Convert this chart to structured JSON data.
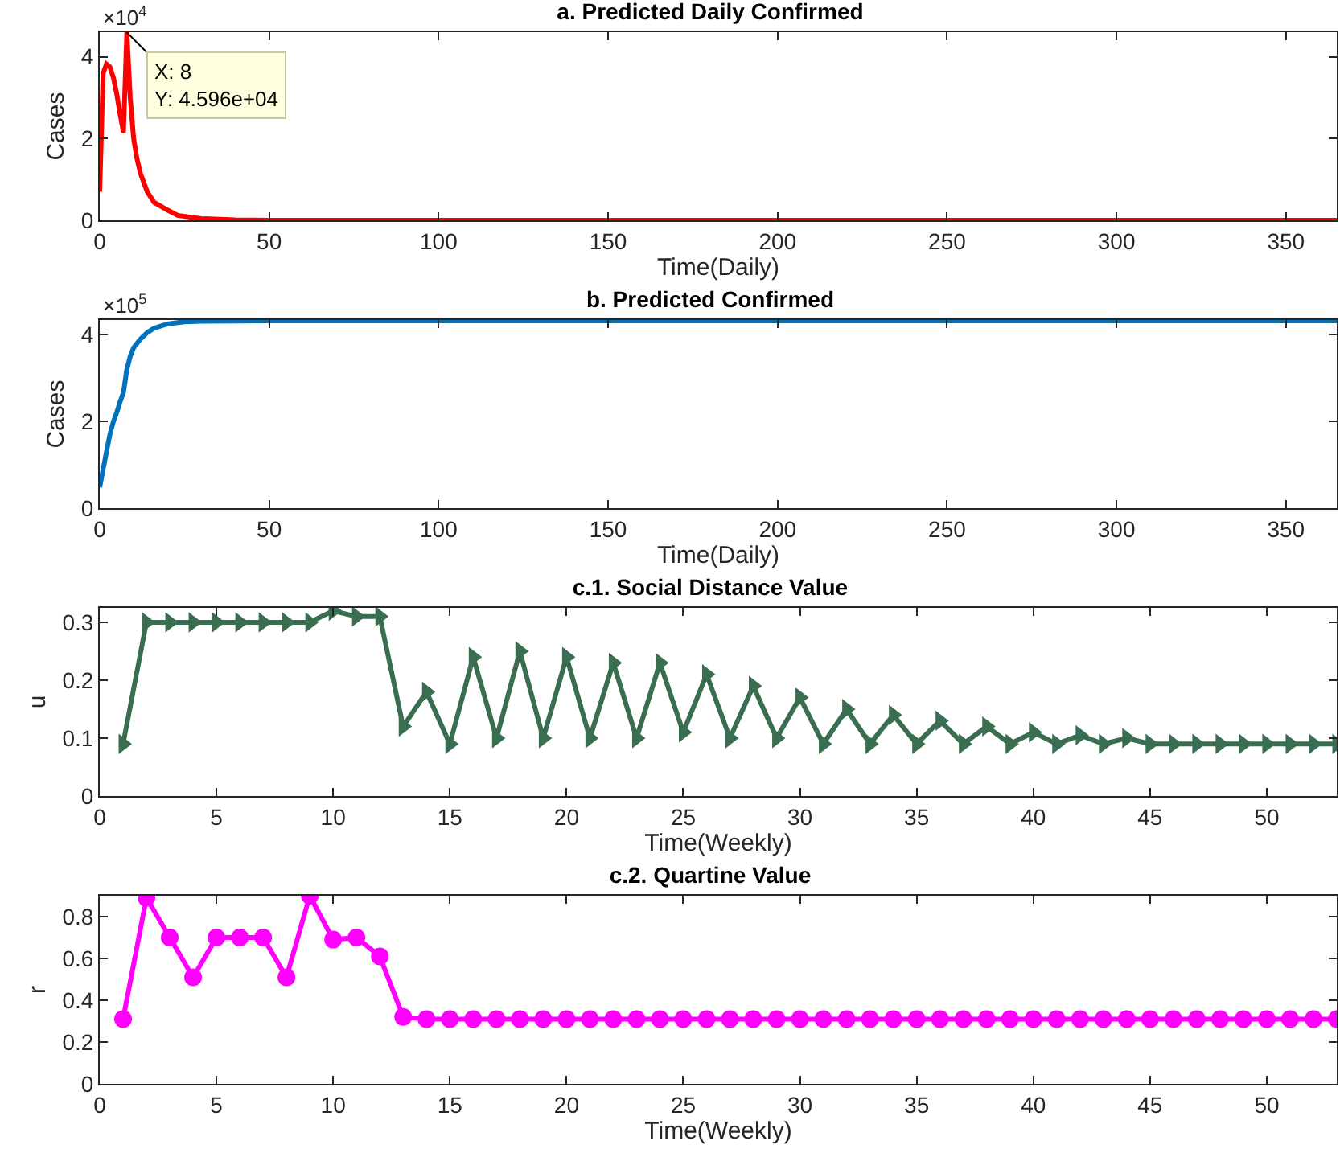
{
  "chart_data": [
    {
      "type": "line",
      "title": "a. Predicted Daily Confirmed",
      "xlabel": "Time(Daily)",
      "ylabel": "Cases",
      "x": [
        0,
        1,
        2,
        3,
        4,
        5,
        6,
        7,
        8,
        9,
        10,
        11,
        12,
        14,
        16,
        20,
        23,
        30,
        40,
        50,
        100,
        200,
        300,
        365
      ],
      "series": [
        {
          "color": "#ff0000",
          "values": [
            0.7,
            3.6,
            3.82,
            3.75,
            3.5,
            3.1,
            2.6,
            2.15,
            4.596,
            3.0,
            2.0,
            1.5,
            1.15,
            0.7,
            0.44,
            0.25,
            0.12,
            0.04,
            0.01,
            0,
            0,
            0,
            0,
            0
          ]
        }
      ],
      "xlim": [
        0,
        365
      ],
      "xticks": [
        0,
        50,
        100,
        150,
        200,
        250,
        300,
        350
      ],
      "ylim": [
        0,
        4.6
      ],
      "yticks": [
        0,
        2,
        4
      ],
      "annotations": [
        "×10$^{4}$",
        {
          "text": "X: 8\nY: 4.596e+04",
          "x": 8,
          "y": 4.596
        }
      ],
      "grid": false,
      "marker": "none",
      "line_style": "solid"
    },
    {
      "type": "line",
      "title": "b. Predicted Confirmed",
      "xlabel": "Time(Daily)",
      "ylabel": "Cases",
      "x": [
        0,
        1,
        2,
        3,
        4,
        5,
        6,
        7,
        8,
        9,
        10,
        12,
        14,
        16,
        20,
        25,
        30,
        50,
        100,
        200,
        300,
        365
      ],
      "series": [
        {
          "color": "#0072bd",
          "values": [
            0.48,
            0.9,
            1.3,
            1.7,
            1.99,
            2.2,
            2.45,
            2.67,
            3.2,
            3.5,
            3.7,
            3.9,
            4.05,
            4.15,
            4.25,
            4.3,
            4.31,
            4.32,
            4.32,
            4.32,
            4.32,
            4.32
          ]
        }
      ],
      "xlim": [
        0,
        365
      ],
      "xticks": [
        0,
        50,
        100,
        150,
        200,
        250,
        300,
        350
      ],
      "ylim": [
        0,
        4.34
      ],
      "yticks": [
        0,
        2,
        4
      ],
      "annotations": [
        "×10$^{5}$"
      ],
      "grid": false,
      "marker": "none",
      "line_style": "solid"
    },
    {
      "type": "line",
      "title": "c.1. Social Distance Value",
      "xlabel": "Time(Weekly)",
      "ylabel": "u",
      "x": [
        1,
        2,
        3,
        4,
        5,
        6,
        7,
        8,
        9,
        10,
        11,
        12,
        13,
        14,
        15,
        16,
        17,
        18,
        19,
        20,
        21,
        22,
        23,
        24,
        25,
        26,
        27,
        28,
        29,
        30,
        31,
        32,
        33,
        34,
        35,
        36,
        37,
        38,
        39,
        40,
        41,
        42,
        43,
        44,
        45,
        46,
        47,
        48,
        49,
        50,
        51,
        52,
        53
      ],
      "series": [
        {
          "color": "#3a6e50",
          "values": [
            0.09,
            0.3,
            0.3,
            0.3,
            0.3,
            0.3,
            0.3,
            0.3,
            0.3,
            0.32,
            0.31,
            0.31,
            0.12,
            0.18,
            0.09,
            0.24,
            0.1,
            0.25,
            0.1,
            0.24,
            0.1,
            0.23,
            0.1,
            0.23,
            0.11,
            0.21,
            0.1,
            0.19,
            0.1,
            0.17,
            0.09,
            0.15,
            0.09,
            0.14,
            0.09,
            0.13,
            0.09,
            0.12,
            0.09,
            0.11,
            0.09,
            0.105,
            0.09,
            0.1,
            0.09,
            0.09,
            0.09,
            0.09,
            0.09,
            0.09,
            0.09,
            0.09,
            0.09
          ]
        }
      ],
      "xlim": [
        0,
        53
      ],
      "xticks": [
        0,
        5,
        10,
        15,
        20,
        25,
        30,
        35,
        40,
        45,
        50
      ],
      "ylim": [
        0,
        0.325
      ],
      "yticks": [
        0,
        0.1,
        0.2,
        0.3
      ],
      "grid": false,
      "marker": "triangle",
      "line_style": "solid"
    },
    {
      "type": "line",
      "title": "c.2. Quartine Value",
      "xlabel": "Time(Weekly)",
      "ylabel": "r",
      "x": [
        1,
        2,
        3,
        4,
        5,
        6,
        7,
        8,
        9,
        10,
        11,
        12,
        13,
        14,
        15,
        16,
        17,
        18,
        19,
        20,
        21,
        22,
        23,
        24,
        25,
        26,
        27,
        28,
        29,
        30,
        31,
        32,
        33,
        34,
        35,
        36,
        37,
        38,
        39,
        40,
        41,
        42,
        43,
        44,
        45,
        46,
        47,
        48,
        49,
        50,
        51,
        52,
        53
      ],
      "series": [
        {
          "color": "#ff00ff",
          "values": [
            0.31,
            0.89,
            0.7,
            0.51,
            0.7,
            0.7,
            0.7,
            0.51,
            0.9,
            0.69,
            0.7,
            0.61,
            0.32,
            0.31,
            0.31,
            0.31,
            0.31,
            0.31,
            0.31,
            0.31,
            0.31,
            0.31,
            0.31,
            0.31,
            0.31,
            0.31,
            0.31,
            0.31,
            0.31,
            0.31,
            0.31,
            0.31,
            0.31,
            0.31,
            0.31,
            0.31,
            0.31,
            0.31,
            0.31,
            0.31,
            0.31,
            0.31,
            0.31,
            0.31,
            0.31,
            0.31,
            0.31,
            0.31,
            0.31,
            0.31,
            0.31,
            0.31,
            0.31
          ]
        }
      ],
      "xlim": [
        0,
        53
      ],
      "xticks": [
        0,
        5,
        10,
        15,
        20,
        25,
        30,
        35,
        40,
        45,
        50
      ],
      "ylim": [
        0,
        0.9
      ],
      "yticks": [
        0,
        0.2,
        0.4,
        0.6,
        0.8
      ],
      "grid": false,
      "marker": "circle",
      "line_style": "solid"
    }
  ]
}
